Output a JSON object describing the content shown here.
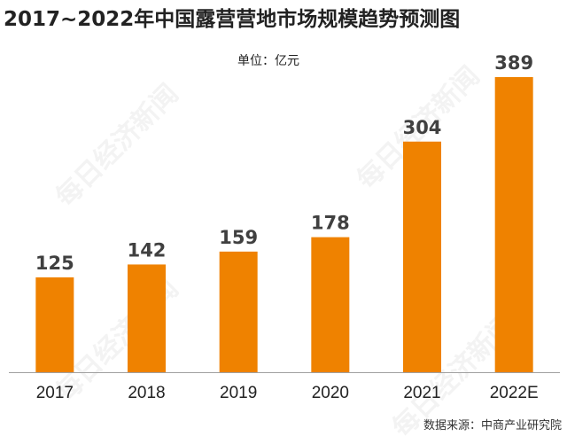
{
  "title": "2017~2022年中国露营营地市场规模趋势预测图",
  "unit_label": "单位：亿元",
  "source_label": "数据来源：中商产业研究院",
  "watermark": "每日经济新闻",
  "colors": {
    "bar": "#ef8200",
    "axis": "#a0a0a0",
    "text": "#222222",
    "value_text": "#404040"
  },
  "chart_data": {
    "type": "bar",
    "title": "2017~2022年中国露营营地市场规模趋势预测图",
    "ylabel": "单位：亿元",
    "xlabel": "",
    "categories": [
      "2017",
      "2018",
      "2019",
      "2020",
      "2021",
      "2022E"
    ],
    "values": [
      125,
      142,
      159,
      178,
      304,
      389
    ],
    "ylim": [
      0,
      400
    ],
    "grid": false,
    "legend": "none"
  }
}
